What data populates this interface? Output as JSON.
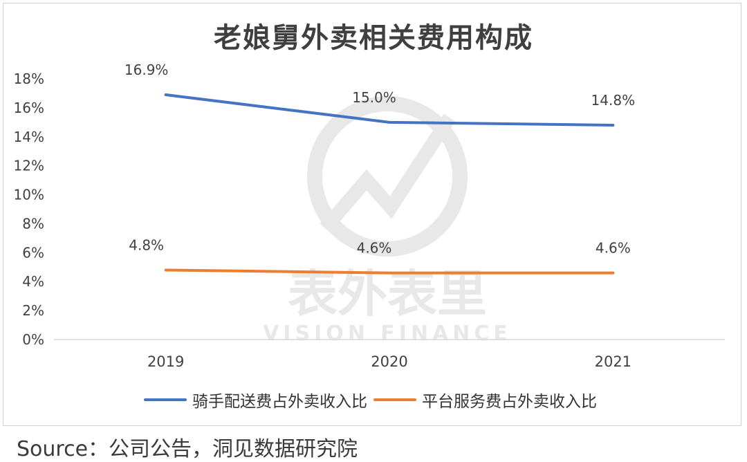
{
  "title": "老娘舅外卖相关费用构成",
  "source": "Source：公司公告，洞见数据研究院",
  "watermark": {
    "cn": "表外表里",
    "en": "VISION FINANCE"
  },
  "colors": {
    "series1": "#4472c4",
    "series2": "#ed7d31",
    "grid": "#d9d9d9",
    "watermark": "#e8e8e8"
  },
  "chart_data": {
    "type": "line",
    "title": "老娘舅外卖相关费用构成",
    "categories": [
      "2019",
      "2020",
      "2021"
    ],
    "yticks": [
      "0%",
      "2%",
      "4%",
      "6%",
      "8%",
      "10%",
      "12%",
      "14%",
      "16%",
      "18%"
    ],
    "ylim": [
      0,
      18
    ],
    "grid": false,
    "legend_position": "bottom",
    "series": [
      {
        "name": "骑手配送费占外卖收入比",
        "values": [
          16.9,
          15.0,
          14.8
        ],
        "labels": [
          "16.9%",
          "15.0%",
          "14.8%"
        ]
      },
      {
        "name": "平台服务费占外卖收入比",
        "values": [
          4.8,
          4.6,
          4.6
        ],
        "labels": [
          "4.8%",
          "4.6%",
          "4.6%"
        ]
      }
    ]
  }
}
